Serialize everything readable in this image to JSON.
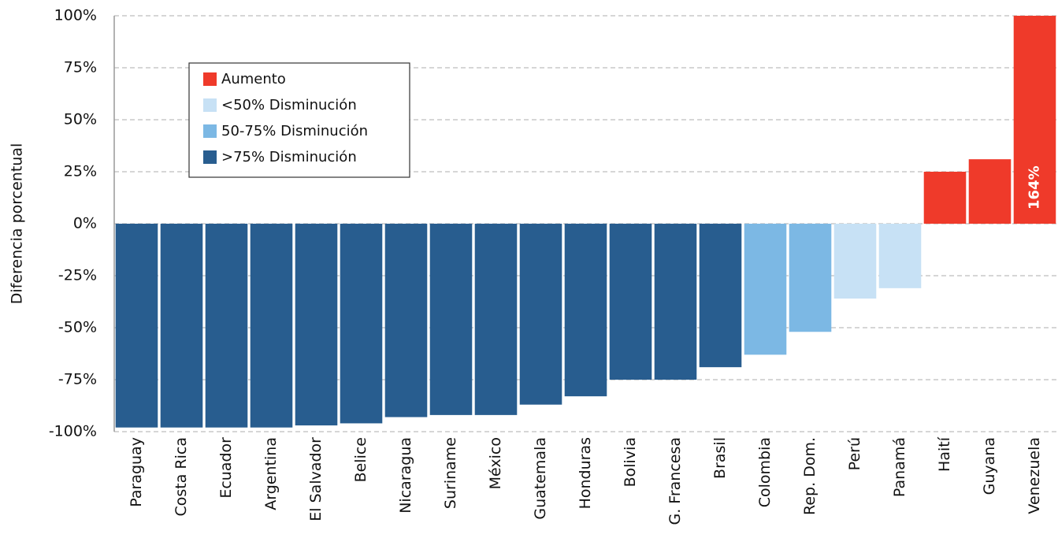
{
  "chart_data": {
    "type": "bar",
    "y_label": "Diferencia porcentual",
    "categories": [
      "Paraguay",
      "Costa Rica",
      "Ecuador",
      "Argentina",
      "El Salvador",
      "Belice",
      "Nicaragua",
      "Suriname",
      "México",
      "Guatemala",
      "Honduras",
      "Bolivia",
      "G. Francesa",
      "Brasil",
      "Colombia",
      "Rep. Dom.",
      "Perú",
      "Panamá",
      "Haití",
      "Guyana",
      "Venezuela"
    ],
    "values": [
      -98,
      -98,
      -98,
      -98,
      -97,
      -96,
      -93,
      -92,
      -92,
      -87,
      -83,
      -75,
      -75,
      -69,
      -63,
      -52,
      -36,
      -31,
      25,
      31,
      164
    ],
    "value_labels": [
      null,
      null,
      null,
      null,
      null,
      null,
      null,
      null,
      null,
      null,
      null,
      null,
      null,
      null,
      null,
      null,
      null,
      null,
      null,
      null,
      "164%"
    ],
    "colors": [
      "#285d8f",
      "#285d8f",
      "#285d8f",
      "#285d8f",
      "#285d8f",
      "#285d8f",
      "#285d8f",
      "#285d8f",
      "#285d8f",
      "#285d8f",
      "#285d8f",
      "#285d8f",
      "#285d8f",
      "#285d8f",
      "#7cb8e4",
      "#7cb8e4",
      "#c7e1f5",
      "#c7e1f5",
      "#ef3a2a",
      "#ef3a2a",
      "#ef3a2a"
    ],
    "legend": [
      {
        "name": "Aumento",
        "color": "#ef3a2a"
      },
      {
        "name": "<50% Disminución",
        "color": "#c7e1f5"
      },
      {
        "name": "50-75% Disminución",
        "color": "#7cb8e4"
      },
      {
        "name": ">75% Disminución",
        "color": "#285d8f"
      }
    ],
    "ylim": [
      -100,
      100
    ],
    "yticks": [
      {
        "value": -100,
        "label": "-100%"
      },
      {
        "value": -75,
        "label": "-75%"
      },
      {
        "value": -50,
        "label": "-50%"
      },
      {
        "value": -25,
        "label": "-25%"
      },
      {
        "value": 0,
        "label": "0%"
      },
      {
        "value": 25,
        "label": "25%"
      },
      {
        "value": 50,
        "label": "50%"
      },
      {
        "value": 75,
        "label": "75%"
      },
      {
        "value": 100,
        "label": "100%"
      }
    ],
    "grid": true
  }
}
